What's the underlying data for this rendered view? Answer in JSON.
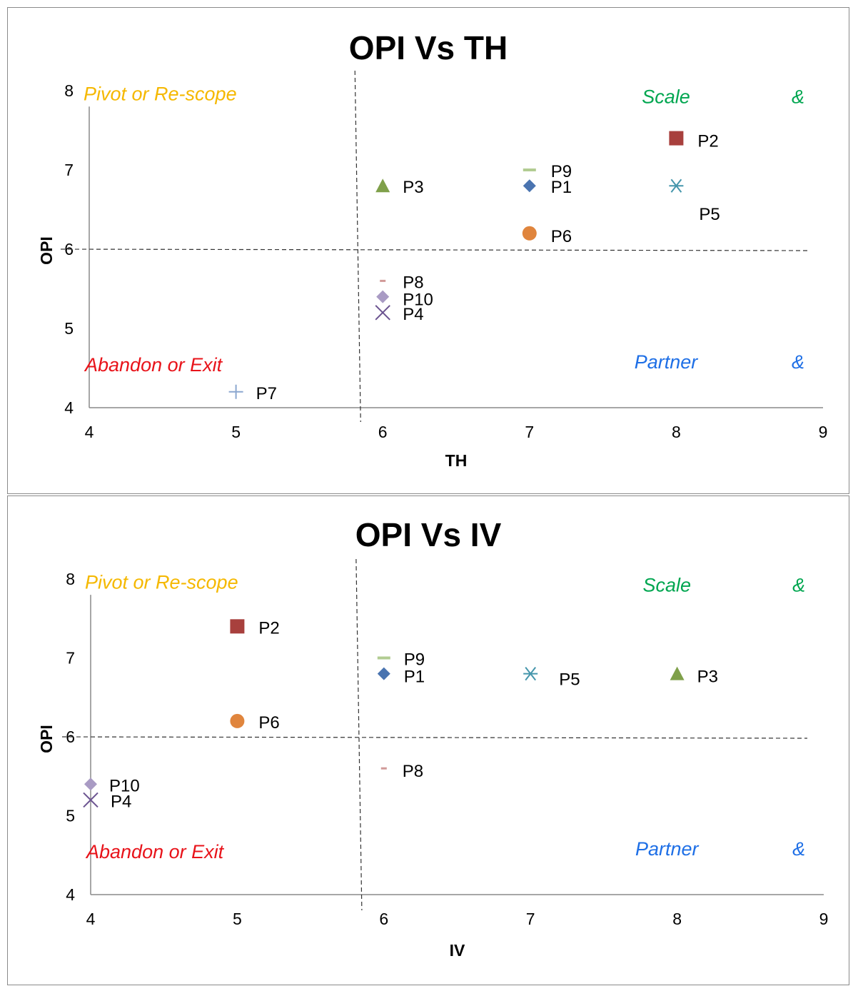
{
  "colors": {
    "pivot": "#f5b800",
    "scale": "#00a650",
    "abandon": "#e8131a",
    "partner": "#1e6fe6",
    "axis": "#8a8a8a",
    "guide": "#333333"
  },
  "chart_data": [
    {
      "type": "scatter",
      "title": "OPI Vs TH",
      "xlabel": "TH",
      "ylabel": "OPI",
      "xlim": [
        4,
        9
      ],
      "ylim": [
        4,
        8
      ],
      "xticks": [
        "4",
        "5",
        "6",
        "7",
        "8",
        "9"
      ],
      "yticks": [
        "4",
        "5",
        "6",
        "7",
        "8"
      ],
      "grid": false,
      "thresholds": {
        "x": 5.83,
        "y": 6
      },
      "quadrants": {
        "top_left": "Pivot or Re-scope",
        "top_right": "Scale",
        "top_right_amp": "&",
        "bottom_left": "Abandon or Exit",
        "bottom_right": "Partner",
        "bottom_right_amp": "&"
      },
      "points": [
        {
          "name": "P1",
          "x": 7,
          "y": 6.8,
          "marker": "diamond",
          "color": "#4a74b0"
        },
        {
          "name": "P2",
          "x": 8,
          "y": 7.4,
          "marker": "square",
          "color": "#a8403d"
        },
        {
          "name": "P3",
          "x": 6,
          "y": 6.8,
          "marker": "triangle",
          "color": "#7fa04a"
        },
        {
          "name": "P4",
          "x": 6,
          "y": 5.2,
          "marker": "x",
          "color": "#6b5390"
        },
        {
          "name": "P5",
          "x": 8,
          "y": 6.8,
          "marker": "star",
          "color": "#4596ac"
        },
        {
          "name": "P6",
          "x": 7,
          "y": 6.2,
          "marker": "circle",
          "color": "#e0853d"
        },
        {
          "name": "P7",
          "x": 5,
          "y": 4.2,
          "marker": "plus",
          "color": "#8ba7cf"
        },
        {
          "name": "P8",
          "x": 6,
          "y": 5.6,
          "marker": "dash",
          "color": "#d19a98"
        },
        {
          "name": "P9",
          "x": 7,
          "y": 7.0,
          "marker": "bar",
          "color": "#b2cc92"
        },
        {
          "name": "P10",
          "x": 6,
          "y": 5.4,
          "marker": "diamond",
          "color": "#a99bc4"
        }
      ]
    },
    {
      "type": "scatter",
      "title": "OPI Vs IV",
      "xlabel": "IV",
      "ylabel": "OPI",
      "xlim": [
        4,
        9
      ],
      "ylim": [
        4,
        8
      ],
      "xticks": [
        "4",
        "5",
        "6",
        "7",
        "8",
        "9"
      ],
      "yticks": [
        "4",
        "5",
        "6",
        "7",
        "8"
      ],
      "grid": false,
      "thresholds": {
        "x": 5.83,
        "y": 6
      },
      "quadrants": {
        "top_left": "Pivot or Re-scope",
        "top_right": "Scale",
        "top_right_amp": "&",
        "bottom_left": "Abandon or Exit",
        "bottom_right": "Partner",
        "bottom_right_amp": "&"
      },
      "points": [
        {
          "name": "P1",
          "x": 6,
          "y": 6.8,
          "marker": "diamond",
          "color": "#4a74b0"
        },
        {
          "name": "P2",
          "x": 5,
          "y": 7.4,
          "marker": "square",
          "color": "#a8403d"
        },
        {
          "name": "P3",
          "x": 8,
          "y": 6.8,
          "marker": "triangle",
          "color": "#7fa04a"
        },
        {
          "name": "P4",
          "x": 4,
          "y": 5.2,
          "marker": "x",
          "color": "#6b5390"
        },
        {
          "name": "P5",
          "x": 7,
          "y": 6.8,
          "marker": "star",
          "color": "#4596ac"
        },
        {
          "name": "P6",
          "x": 5,
          "y": 6.2,
          "marker": "circle",
          "color": "#e0853d"
        },
        {
          "name": "P8",
          "x": 6,
          "y": 5.6,
          "marker": "dash",
          "color": "#d19a98"
        },
        {
          "name": "P9",
          "x": 6,
          "y": 7.0,
          "marker": "bar",
          "color": "#b2cc92"
        },
        {
          "name": "P10",
          "x": 4,
          "y": 5.4,
          "marker": "diamond",
          "color": "#a99bc4"
        }
      ]
    }
  ]
}
